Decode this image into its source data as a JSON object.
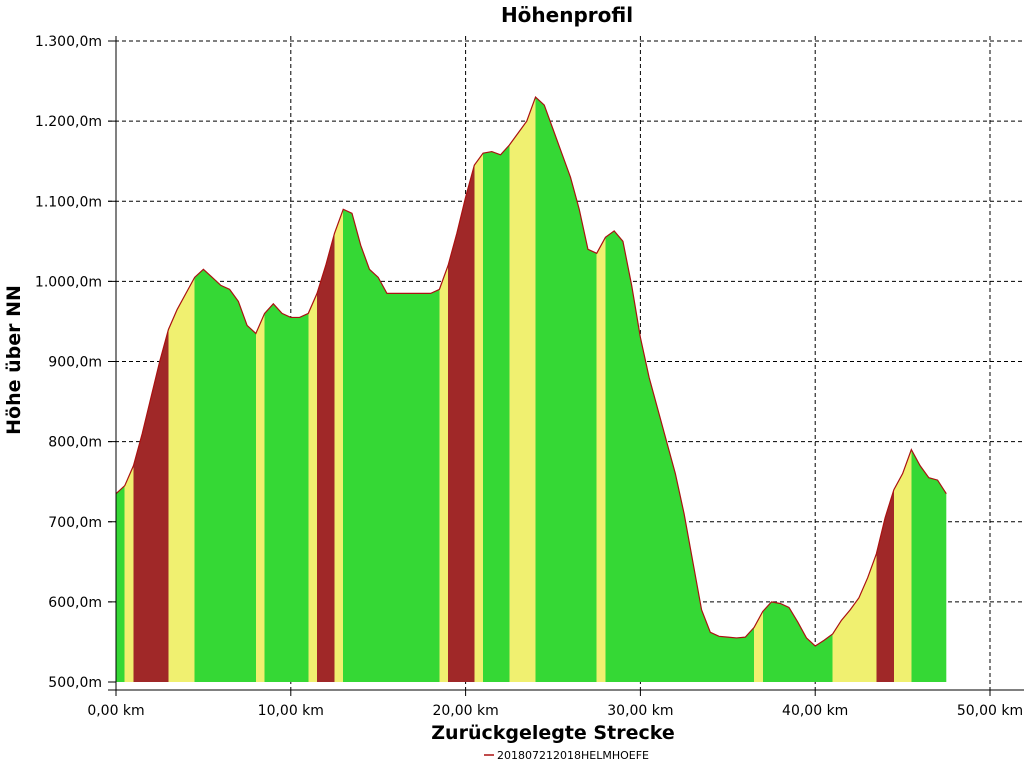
{
  "chart_data": {
    "type": "area",
    "title": "Höhenprofil",
    "xlabel": "Zurückgelegte Strecke",
    "ylabel": "Höhe über NN",
    "xlim": [
      0,
      50
    ],
    "ylim": [
      500,
      1300
    ],
    "grid": true,
    "legend_position": "bottom",
    "x_ticks": [
      {
        "value": 0,
        "label": "0,00 km"
      },
      {
        "value": 10,
        "label": "10,00 km"
      },
      {
        "value": 20,
        "label": "20,00 km"
      },
      {
        "value": 30,
        "label": "30,00 km"
      },
      {
        "value": 40,
        "label": "40,00 km"
      },
      {
        "value": 50,
        "label": "50,00 km"
      }
    ],
    "y_ticks": [
      {
        "value": 500,
        "label": "500,0m"
      },
      {
        "value": 600,
        "label": "600,0m"
      },
      {
        "value": 700,
        "label": "700,0m"
      },
      {
        "value": 800,
        "label": "800,0m"
      },
      {
        "value": 900,
        "label": "900,0m"
      },
      {
        "value": 1000,
        "label": "1.000,0m"
      },
      {
        "value": 1100,
        "label": "1.100,0m"
      },
      {
        "value": 1200,
        "label": "1.200,0m"
      },
      {
        "value": 1300,
        "label": "1.300,0m"
      }
    ],
    "series": [
      {
        "name": "201807212018HELMHOEFE",
        "color": "#aa1111",
        "x": [
          0,
          0.5,
          1,
          1.5,
          2,
          2.5,
          3,
          3.5,
          4,
          4.5,
          5,
          5.5,
          6,
          6.5,
          7,
          7.5,
          8,
          8.5,
          9,
          9.5,
          10,
          10.5,
          11,
          11.5,
          12,
          12.5,
          13,
          13.5,
          14,
          14.5,
          15,
          15.5,
          16,
          17,
          18,
          18.5,
          19,
          19.5,
          20,
          20.5,
          21,
          21.5,
          22,
          22.5,
          23,
          23.5,
          24,
          24.5,
          25,
          25.5,
          26,
          26.5,
          27,
          27.5,
          28,
          28.5,
          29,
          29.5,
          30,
          30.5,
          31,
          31.5,
          32,
          32.5,
          33,
          33.5,
          34,
          34.5,
          35,
          35.5,
          36,
          36.5,
          37,
          37.5,
          38,
          38.5,
          39,
          39.5,
          40,
          40.5,
          41,
          41.5,
          42,
          42.5,
          43,
          43.5,
          44,
          44.5,
          45,
          45.5,
          46,
          46.5,
          47,
          47.5
        ],
        "y": [
          735,
          745,
          770,
          810,
          855,
          900,
          940,
          965,
          985,
          1005,
          1015,
          1005,
          995,
          990,
          975,
          945,
          935,
          960,
          972,
          960,
          955,
          955,
          960,
          985,
          1020,
          1060,
          1090,
          1085,
          1045,
          1015,
          1005,
          985,
          985,
          985,
          985,
          990,
          1020,
          1060,
          1105,
          1145,
          1160,
          1162,
          1158,
          1170,
          1185,
          1200,
          1230,
          1220,
          1190,
          1160,
          1130,
          1090,
          1040,
          1035,
          1055,
          1063,
          1050,
          995,
          930,
          880,
          840,
          800,
          760,
          710,
          650,
          590,
          562,
          557,
          556,
          555,
          556,
          568,
          588,
          600,
          598,
          593,
          575,
          555,
          545,
          552,
          560,
          577,
          590,
          605,
          630,
          660,
          705,
          740,
          760,
          790,
          770,
          755,
          752,
          735
        ],
        "gradient_colors": {
          "flat": "#35d835",
          "moderate": "#f0f070",
          "steep": "#a02828"
        }
      }
    ]
  }
}
